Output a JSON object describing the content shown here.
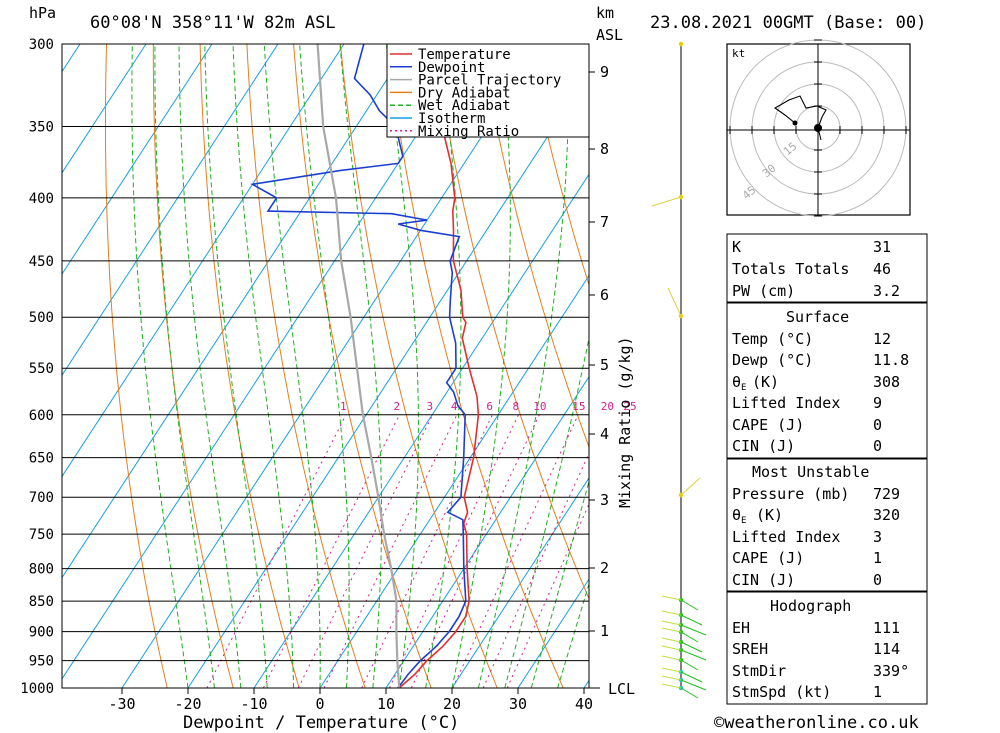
{
  "header": {
    "unit_hpa": "hPa",
    "location": "60°08'N 358°11'W 82m ASL",
    "unit_km": "km",
    "unit_asl": "ASL",
    "datetime": "23.08.2021 00GMT (Base: 00)"
  },
  "axes": {
    "xlabel": "Dewpoint / Temperature (°C)",
    "mixing_label": "Mixing Ratio (g/kg)",
    "lcl_label": "LCL"
  },
  "legend": [
    "Temperature",
    "Dewpoint",
    "Parcel Trajectory",
    "Dry Adiabat",
    "Wet Adiabat",
    "Isotherm",
    "Mixing Ratio"
  ],
  "colors": {
    "temperature": "#e03030",
    "dewpoint": "#1a3fd0",
    "parcel": "#a8a8a8",
    "dry_adiabat": "#e08020",
    "wet_adiabat": "#20b020",
    "isotherm": "#1aa0e0",
    "mixing_ratio": "#d02090",
    "wind": "#20c020"
  },
  "chart_data": {
    "type": "line",
    "title": "60°08'N 358°11'W 82m ASL",
    "xlabel": "Dewpoint / Temperature (°C)",
    "ylabel": "hPa",
    "x_ticks": [
      -30,
      -20,
      -10,
      0,
      10,
      20,
      30,
      40
    ],
    "pressure_levels": [
      300,
      350,
      400,
      450,
      500,
      550,
      600,
      650,
      700,
      750,
      800,
      850,
      900,
      950,
      1000
    ],
    "km_ticks": [
      1,
      2,
      3,
      4,
      5,
      6,
      7,
      8,
      9
    ],
    "mixing_ratio_labels": [
      "1",
      "2",
      "3",
      "4",
      "6",
      "8",
      "10",
      "15",
      "20",
      "25"
    ],
    "series": [
      {
        "name": "Temperature",
        "points": [
          [
            1000,
            12
          ],
          [
            975,
            13
          ],
          [
            950,
            13.5
          ],
          [
            925,
            14.5
          ],
          [
            900,
            15
          ],
          [
            875,
            15
          ],
          [
            850,
            14
          ],
          [
            800,
            10.5
          ],
          [
            750,
            7
          ],
          [
            735,
            5.5
          ],
          [
            720,
            5
          ],
          [
            700,
            3
          ],
          [
            650,
            0.5
          ],
          [
            600,
            -3
          ],
          [
            580,
            -5
          ],
          [
            550,
            -9
          ],
          [
            520,
            -13
          ],
          [
            505,
            -14
          ],
          [
            500,
            -15
          ],
          [
            475,
            -18
          ],
          [
            450,
            -22
          ],
          [
            425,
            -25
          ],
          [
            410,
            -27
          ],
          [
            400,
            -28
          ],
          [
            375,
            -32
          ],
          [
            350,
            -37
          ],
          [
            325,
            -42
          ],
          [
            300,
            -47
          ]
        ]
      },
      {
        "name": "Dewpoint",
        "points": [
          [
            1000,
            11.8
          ],
          [
            975,
            12
          ],
          [
            950,
            12.5
          ],
          [
            925,
            13.5
          ],
          [
            900,
            14
          ],
          [
            875,
            14
          ],
          [
            850,
            13.5
          ],
          [
            800,
            10
          ],
          [
            750,
            6.5
          ],
          [
            730,
            5
          ],
          [
            720,
            2
          ],
          [
            700,
            2.5
          ],
          [
            650,
            -1
          ],
          [
            600,
            -5
          ],
          [
            590,
            -7
          ],
          [
            575,
            -9
          ],
          [
            565,
            -11
          ],
          [
            550,
            -11
          ],
          [
            525,
            -13.5
          ],
          [
            500,
            -17
          ],
          [
            485,
            -18.5
          ],
          [
            470,
            -20
          ],
          [
            460,
            -21
          ],
          [
            450,
            -22.5
          ],
          [
            430,
            -23.5
          ],
          [
            425,
            -30
          ],
          [
            420,
            -34
          ],
          [
            417,
            -30
          ],
          [
            412,
            -36
          ],
          [
            410,
            -55
          ],
          [
            400,
            -55
          ],
          [
            390,
            -60
          ],
          [
            380,
            -48
          ],
          [
            375,
            -40
          ],
          [
            370,
            -40
          ],
          [
            360,
            -42
          ],
          [
            355,
            -43
          ],
          [
            350,
            -44
          ],
          [
            340,
            -48
          ],
          [
            330,
            -51
          ],
          [
            320,
            -55
          ],
          [
            300,
            -57
          ]
        ]
      },
      {
        "name": "Parcel Trajectory",
        "points": [
          [
            1000,
            12
          ],
          [
            950,
            9
          ],
          [
            900,
            6
          ],
          [
            850,
            3
          ],
          [
            800,
            -1
          ],
          [
            750,
            -5.5
          ],
          [
            700,
            -10
          ],
          [
            650,
            -15
          ],
          [
            600,
            -20.5
          ],
          [
            550,
            -26
          ],
          [
            500,
            -32
          ],
          [
            450,
            -39
          ],
          [
            400,
            -46
          ],
          [
            350,
            -55
          ],
          [
            300,
            -64
          ]
        ]
      }
    ],
    "indices": {
      "K": "31",
      "Totals Totals": "46",
      "PW (cm)": "3.2"
    },
    "surface": {
      "title": "Surface",
      "Temp": "12",
      "Dewp": "11.8",
      "theta_e": "308",
      "Lifted Index": "9",
      "CAPE": "0",
      "CIN": "0"
    },
    "most_unstable": {
      "title": "Most Unstable",
      "Pressure": "729",
      "theta_e": "320",
      "Lifted Index": "3",
      "CAPE": "1",
      "CIN": "0"
    },
    "hodograph": {
      "title": "Hodograph",
      "EH": "111",
      "SREH": "114",
      "StmDir": "339°",
      "StmSpd": "1",
      "unit": "kt",
      "rings": [
        "15",
        "30",
        "45"
      ]
    }
  },
  "labels": {
    "K": "K",
    "TT": "Totals Totals",
    "PW": "PW (cm)",
    "Temp": "Temp (°C)",
    "Dewp": "Dewp (°C)",
    "theta_e": "(K)",
    "LI": "Lifted Index",
    "CAPE": "CAPE (J)",
    "CIN": "CIN (J)",
    "Pressure": "Pressure (mb)",
    "theta_e2": "(K)",
    "EH": "EH",
    "SREH": "SREH",
    "StmDir": "StmDir",
    "StmSpd": "StmSpd (kt)"
  },
  "footer": "©weatheronline.co.uk"
}
